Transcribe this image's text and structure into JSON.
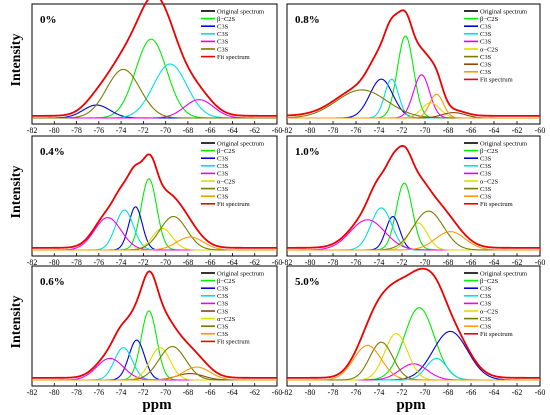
{
  "figure": {
    "y_axis_label": "Intensity",
    "x_axis_label": "ppm"
  },
  "chart_data": [
    {
      "type": "line",
      "panel_label": "0%",
      "x_ticks": [
        -82,
        -80,
        -78,
        -76,
        -74,
        -72,
        -70,
        -68,
        -66,
        -64,
        -62,
        -60
      ],
      "xlim": [
        -82,
        -60
      ],
      "x_reversed": false,
      "ylim": [
        0,
        1
      ],
      "legend": [
        "Original spectrum",
        "β−C2S",
        "C3S",
        "C3S",
        "C3S",
        "C3S",
        "Fit spectrum"
      ],
      "series": [
        {
          "name": "Original spectrum",
          "color": "#000000",
          "kind": "sum",
          "base": 0.02
        },
        {
          "name": "β−C2S",
          "color": "#00ee00",
          "kind": "peak",
          "center": -71.3,
          "height": 0.73,
          "width": 1.4
        },
        {
          "name": "C3S",
          "color": "#0000dd",
          "kind": "peak",
          "center": -76.2,
          "height": 0.12,
          "width": 1.2
        },
        {
          "name": "C3S",
          "color": "#00e0e0",
          "kind": "peak",
          "center": -69.6,
          "height": 0.5,
          "width": 1.5
        },
        {
          "name": "C3S",
          "color": "#ee00ee",
          "kind": "peak",
          "center": -67.0,
          "height": 0.17,
          "width": 1.3
        },
        {
          "name": "C3S",
          "color": "#7a7a00",
          "kind": "peak",
          "center": -73.8,
          "height": 0.45,
          "width": 1.5
        },
        {
          "name": "Fit spectrum",
          "color": "#ee0000",
          "kind": "sum",
          "base": 0.02
        }
      ]
    },
    {
      "type": "line",
      "panel_label": "0.8%",
      "x_ticks": [
        -82,
        -80,
        -78,
        -76,
        -74,
        -72,
        -70,
        -68,
        -66,
        -64,
        -62,
        -60
      ],
      "xlim": [
        -82,
        -60
      ],
      "x_reversed": false,
      "ylim": [
        0,
        1
      ],
      "legend": [
        "Original spectrum",
        "β−C2S",
        "C3S",
        "C3S",
        "C3S",
        "α−C2S",
        "C3S",
        "C3S",
        "C3S",
        "Fit spectrum"
      ],
      "series": [
        {
          "name": "Original spectrum",
          "color": "#000000",
          "kind": "sum",
          "base": 0.02
        },
        {
          "name": "β−C2S",
          "color": "#00ee00",
          "kind": "peak",
          "center": -71.7,
          "height": 0.76,
          "width": 0.7
        },
        {
          "name": "C3S",
          "color": "#0000dd",
          "kind": "peak",
          "center": -73.8,
          "height": 0.36,
          "width": 1.0
        },
        {
          "name": "C3S",
          "color": "#00e0e0",
          "kind": "peak",
          "center": -72.9,
          "height": 0.36,
          "width": 0.6
        },
        {
          "name": "C3S",
          "color": "#ee00ee",
          "kind": "peak",
          "center": -70.3,
          "height": 0.4,
          "width": 0.7
        },
        {
          "name": "α−C2S",
          "color": "#dddd00",
          "kind": "peak",
          "center": -69.5,
          "height": 0.14,
          "width": 0.8
        },
        {
          "name": "C3S",
          "color": "#7a7a00",
          "kind": "peak",
          "center": -75.5,
          "height": 0.26,
          "width": 2.2
        },
        {
          "name": "C3S",
          "color": "#8b4513",
          "kind": "peak",
          "center": -67.5,
          "height": 0.05,
          "width": 1.0
        },
        {
          "name": "C3S",
          "color": "#ff9900",
          "kind": "peak",
          "center": -69.0,
          "height": 0.22,
          "width": 0.6
        },
        {
          "name": "Fit spectrum",
          "color": "#ee0000",
          "kind": "sum",
          "base": 0.02
        }
      ]
    },
    {
      "type": "line",
      "panel_label": "0.4%",
      "x_ticks": [
        -82,
        -80,
        -78,
        -76,
        -74,
        -72,
        -70,
        -68,
        -66,
        -64,
        -62,
        -60
      ],
      "xlim": [
        -82,
        -60
      ],
      "x_reversed": false,
      "ylim": [
        0,
        1
      ],
      "legend": [
        "Original spectrum",
        "β−C2S",
        "C3S",
        "C3S",
        "C3S",
        "α−C2S",
        "C3S",
        "C3S",
        "Fit spectrum"
      ],
      "series": [
        {
          "name": "Original spectrum",
          "color": "#000000",
          "kind": "sum",
          "base": 0.02
        },
        {
          "name": "β−C2S",
          "color": "#00ee00",
          "kind": "peak",
          "center": -71.5,
          "height": 0.66,
          "width": 0.7
        },
        {
          "name": "C3S",
          "color": "#0000dd",
          "kind": "peak",
          "center": -72.7,
          "height": 0.4,
          "width": 0.6
        },
        {
          "name": "C3S",
          "color": "#00e0e0",
          "kind": "peak",
          "center": -73.7,
          "height": 0.37,
          "width": 0.8
        },
        {
          "name": "C3S",
          "color": "#ee00ee",
          "kind": "peak",
          "center": -75.2,
          "height": 0.3,
          "width": 1.2
        },
        {
          "name": "α−C2S",
          "color": "#dddd00",
          "kind": "peak",
          "center": -70.3,
          "height": 0.2,
          "width": 0.9
        },
        {
          "name": "C3S",
          "color": "#7a7a00",
          "kind": "peak",
          "center": -69.3,
          "height": 0.31,
          "width": 1.2
        },
        {
          "name": "C3S",
          "color": "#ff9900",
          "kind": "peak",
          "center": -67.8,
          "height": 0.12,
          "width": 1.2
        },
        {
          "name": "Fit spectrum",
          "color": "#ee0000",
          "kind": "sum",
          "base": 0.02
        }
      ]
    },
    {
      "type": "line",
      "panel_label": "1.0%",
      "x_ticks": [
        -82,
        -80,
        -78,
        -76,
        -74,
        -72,
        -70,
        -68,
        -66,
        -64,
        -62,
        -60
      ],
      "xlim": [
        -82,
        -60
      ],
      "x_reversed": false,
      "ylim": [
        0,
        1
      ],
      "legend": [
        "Original spectrum",
        "β−C2S",
        "C3S",
        "C3S",
        "C3S",
        "α−C2S",
        "C3S",
        "C3S",
        "Fit spectrum"
      ],
      "series": [
        {
          "name": "Original spectrum",
          "color": "#000000",
          "kind": "sum",
          "base": 0.02
        },
        {
          "name": "β−C2S",
          "color": "#00ee00",
          "kind": "peak",
          "center": -71.8,
          "height": 0.62,
          "width": 0.7
        },
        {
          "name": "C3S",
          "color": "#0000dd",
          "kind": "peak",
          "center": -72.8,
          "height": 0.31,
          "width": 0.6
        },
        {
          "name": "C3S",
          "color": "#00e0e0",
          "kind": "peak",
          "center": -73.8,
          "height": 0.39,
          "width": 0.9
        },
        {
          "name": "C3S",
          "color": "#ee00ee",
          "kind": "peak",
          "center": -75.0,
          "height": 0.28,
          "width": 1.5
        },
        {
          "name": "α−C2S",
          "color": "#dddd00",
          "kind": "peak",
          "center": -70.6,
          "height": 0.25,
          "width": 0.8
        },
        {
          "name": "C3S",
          "color": "#7a7a00",
          "kind": "peak",
          "center": -69.7,
          "height": 0.36,
          "width": 1.3
        },
        {
          "name": "C3S",
          "color": "#ff9900",
          "kind": "peak",
          "center": -67.8,
          "height": 0.17,
          "width": 1.3
        },
        {
          "name": "Fit spectrum",
          "color": "#ee0000",
          "kind": "sum",
          "base": 0.02
        }
      ]
    },
    {
      "type": "line",
      "panel_label": "0.6%",
      "x_ticks": [
        -82,
        -80,
        -78,
        -76,
        -74,
        -72,
        -70,
        -68,
        -66,
        -64,
        -62,
        -60
      ],
      "xlim": [
        -82,
        -60
      ],
      "x_reversed": false,
      "ylim": [
        0,
        1
      ],
      "legend": [
        "Original spectrum",
        "β−C2S",
        "C3S",
        "C3S",
        "C3S",
        "C3S",
        "α−C2S",
        "C3S",
        "C3S",
        "Fit spectrum"
      ],
      "series": [
        {
          "name": "Original spectrum",
          "color": "#000000",
          "kind": "sum",
          "base": 0.02
        },
        {
          "name": "β−C2S",
          "color": "#00ee00",
          "kind": "peak",
          "center": -71.5,
          "height": 0.64,
          "width": 0.7
        },
        {
          "name": "C3S",
          "color": "#0000dd",
          "kind": "peak",
          "center": -72.6,
          "height": 0.37,
          "width": 0.7
        },
        {
          "name": "C3S",
          "color": "#00e0e0",
          "kind": "peak",
          "center": -73.8,
          "height": 0.3,
          "width": 0.8
        },
        {
          "name": "C3S",
          "color": "#ee00ee",
          "kind": "peak",
          "center": -75.0,
          "height": 0.2,
          "width": 1.2
        },
        {
          "name": "C3S",
          "color": "#8b4513",
          "kind": "peak",
          "center": -67.8,
          "height": 0.06,
          "width": 1.2
        },
        {
          "name": "α−C2S",
          "color": "#dddd00",
          "kind": "peak",
          "center": -70.5,
          "height": 0.3,
          "width": 0.9
        },
        {
          "name": "C3S",
          "color": "#7a7a00",
          "kind": "peak",
          "center": -69.4,
          "height": 0.31,
          "width": 1.2
        },
        {
          "name": "C3S",
          "color": "#ff9900",
          "kind": "peak",
          "center": -67.2,
          "height": 0.12,
          "width": 1.2
        },
        {
          "name": "Fit spectrum",
          "color": "#ee0000",
          "kind": "sum",
          "base": 0.02
        }
      ]
    },
    {
      "type": "line",
      "panel_label": "5.0%",
      "x_ticks": [
        -82,
        -80,
        -78,
        -76,
        -74,
        -72,
        -70,
        -68,
        -66,
        -64,
        -62,
        -60
      ],
      "xlim": [
        -82,
        -60
      ],
      "x_reversed": false,
      "ylim": [
        0,
        1
      ],
      "legend": [
        "Original spectrum",
        "β−C2S",
        "C3S",
        "C3S",
        "C3S",
        "α−C2S",
        "C3S",
        "C3S",
        "Fit spectrum"
      ],
      "series": [
        {
          "name": "Original spectrum",
          "color": "#000000",
          "kind": "sum",
          "base": 0.02
        },
        {
          "name": "β−C2S",
          "color": "#00ee00",
          "kind": "peak",
          "center": -70.5,
          "height": 0.67,
          "width": 1.3
        },
        {
          "name": "C3S",
          "color": "#0000dd",
          "kind": "peak",
          "center": -67.8,
          "height": 0.45,
          "width": 1.5
        },
        {
          "name": "C3S",
          "color": "#00e0e0",
          "kind": "peak",
          "center": -69.0,
          "height": 0.2,
          "width": 0.9
        },
        {
          "name": "C3S",
          "color": "#ee00ee",
          "kind": "peak",
          "center": -71.0,
          "height": 0.15,
          "width": 1.2
        },
        {
          "name": "α−C2S",
          "color": "#dddd00",
          "kind": "peak",
          "center": -72.5,
          "height": 0.43,
          "width": 1.0
        },
        {
          "name": "C3S",
          "color": "#7a7a00",
          "kind": "peak",
          "center": -73.8,
          "height": 0.35,
          "width": 1.0
        },
        {
          "name": "C3S",
          "color": "#ff9900",
          "kind": "peak",
          "center": -75.0,
          "height": 0.32,
          "width": 1.2
        },
        {
          "name": "Fit spectrum",
          "color": "#ee0000",
          "kind": "sum",
          "base": 0.02
        }
      ]
    }
  ]
}
